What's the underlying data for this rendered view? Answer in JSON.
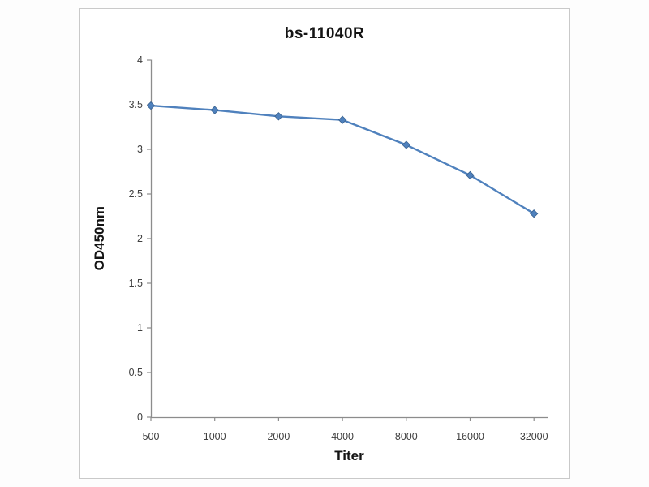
{
  "chart_data": {
    "type": "line",
    "title": "bs-11040R",
    "xlabel": "Titer",
    "ylabel": "OD450nm",
    "categories": [
      "500",
      "1000",
      "2000",
      "4000",
      "8000",
      "16000",
      "32000"
    ],
    "series": [
      {
        "name": "bs-11040R",
        "values": [
          3.49,
          3.44,
          3.37,
          3.33,
          3.05,
          2.71,
          2.28
        ]
      }
    ],
    "ylim": [
      0,
      4
    ],
    "ytick_step": 0.5,
    "yticks": [
      0,
      0.5,
      1,
      1.5,
      2,
      2.5,
      3,
      3.5,
      4
    ],
    "grid": false,
    "legend": "none",
    "marker": "diamond",
    "line_color": "#4f81bd",
    "marker_edge_color": "#38618f",
    "axis_color": "#8c8c8c",
    "tick_label_color": "#404040"
  }
}
